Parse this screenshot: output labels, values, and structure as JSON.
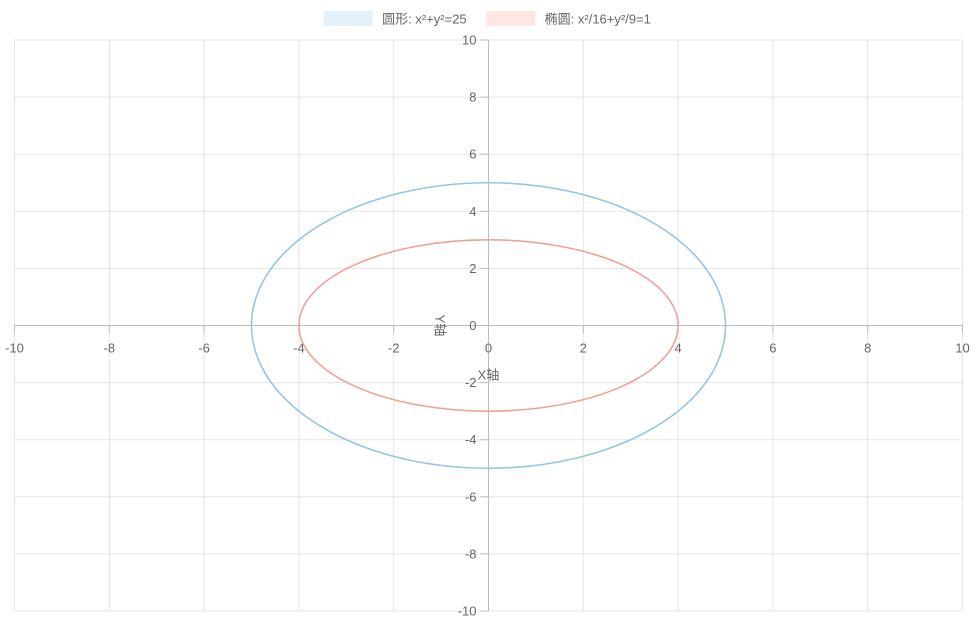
{
  "chart_data": {
    "type": "line",
    "title": "",
    "xlabel": "X轴",
    "ylabel": "Y轴",
    "xlim": [
      -10,
      10
    ],
    "ylim": [
      -10,
      10
    ],
    "x_ticks": [
      -10,
      -8,
      -6,
      -4,
      -2,
      0,
      2,
      4,
      6,
      8,
      10
    ],
    "y_ticks": [
      -10,
      -8,
      -6,
      -4,
      -2,
      0,
      2,
      4,
      6,
      8,
      10
    ],
    "grid": true,
    "legend_position": "top",
    "series": [
      {
        "name": "圆形: x²+y²=25",
        "equation": "x^2 + y^2 = 25",
        "center": [
          0,
          0
        ],
        "semi_axes": [
          5,
          5
        ],
        "color": "#93c6e6",
        "fill": "#e4f1fb"
      },
      {
        "name": "椭圆: x²/16+y²/9=1",
        "equation": "x^2/16 + y^2/9 = 1",
        "center": [
          0,
          0
        ],
        "semi_axes": [
          4,
          3
        ],
        "color": "#eea295",
        "fill": "#fde6e4"
      }
    ]
  }
}
